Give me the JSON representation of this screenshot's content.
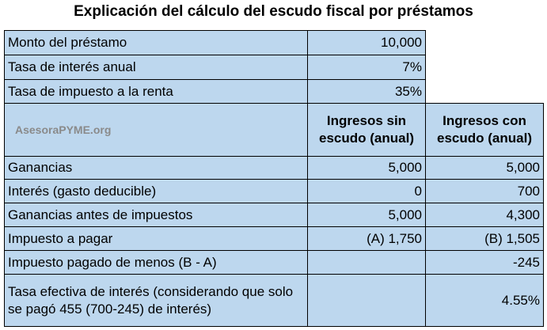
{
  "title": "Explicación del cálculo del escudo fiscal por préstamos",
  "watermark": "AsesoraPYME.org",
  "inputs": [
    {
      "label": "Monto del préstamo",
      "value": "10,000"
    },
    {
      "label": "Tasa de interés anual",
      "value": "7%"
    },
    {
      "label": "Tasa de impuesto a la renta",
      "value": "35%"
    }
  ],
  "columns": {
    "without_shield": "Ingresos sin escudo (anual)",
    "with_shield": "Ingresos con escudo (anual)"
  },
  "rows": [
    {
      "label": "Ganancias",
      "without": "5,000",
      "with": "5,000"
    },
    {
      "label": "Interés (gasto deducible)",
      "without": "0",
      "with": "700"
    },
    {
      "label": "Ganancias antes de impuestos",
      "without": "5,000",
      "with": "4,300"
    },
    {
      "label": "Impuesto a pagar",
      "without": "(A) 1,750",
      "with": "(B) 1,505"
    },
    {
      "label": "Impuesto pagado de menos (B - A)",
      "without": "",
      "with": "-245"
    },
    {
      "label": "Tasa efectiva de interés (considerando que solo se pagó 455 (700-245) de interés)",
      "without": "",
      "with": "4.55%"
    }
  ]
}
